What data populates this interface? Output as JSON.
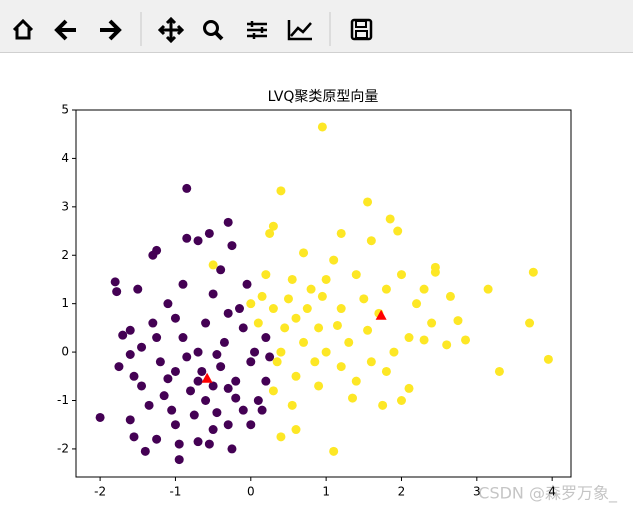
{
  "chart_data": {
    "type": "scatter",
    "title": "LVQ聚类原型向量",
    "xlim": [
      -2.32,
      4.25
    ],
    "ylim": [
      -2.58,
      5
    ],
    "xticks": [
      -2,
      -1,
      0,
      1,
      2,
      3,
      4
    ],
    "yticks": [
      -2,
      -1,
      0,
      1,
      2,
      3,
      4,
      5
    ],
    "watermark": "CSDN @森罗万象_",
    "series": [
      {
        "color": "#440154",
        "x": [
          -0.85,
          -2.0,
          -1.8,
          -1.78,
          -0.95,
          -0.3,
          -1.3,
          -1.25,
          -0.85,
          -0.7,
          -0.55,
          -0.25,
          -1.6,
          -1.7,
          -1.55,
          -1.6,
          -1.55,
          -1.25,
          -1.0,
          -0.7,
          -0.5,
          -0.3,
          -0.1,
          0.1,
          0.2,
          0.25,
          0.2,
          -0.1,
          -0.3,
          -0.5,
          -0.9,
          -1.1,
          -1.3,
          -1.45,
          -1.2,
          -1.0,
          -0.8,
          -0.6,
          -0.4,
          -0.2,
          0.0,
          -0.7,
          -0.9,
          -1.15,
          -1.35,
          -0.45,
          -0.65,
          -0.5,
          -0.75,
          -1.05,
          -0.35,
          -0.15,
          -0.05,
          -1.45,
          -1.6,
          -1.75,
          -0.2,
          0.05,
          -0.85,
          -0.6,
          -1.0,
          -1.5,
          -0.4,
          0.0,
          0.15,
          -0.55,
          -0.25,
          -1.4,
          -0.95,
          -0.3,
          -0.7,
          -0.45,
          -1.25,
          -1.1
        ],
        "values": [
          3.38,
          -1.35,
          1.45,
          1.25,
          -2.22,
          2.68,
          2.0,
          2.1,
          2.35,
          2.3,
          2.45,
          2.2,
          0.45,
          0.35,
          -0.5,
          -1.4,
          -1.75,
          -1.8,
          -1.5,
          -1.85,
          -1.6,
          -1.5,
          -1.2,
          -1.0,
          -0.6,
          -0.1,
          0.3,
          0.5,
          0.8,
          1.2,
          1.4,
          1.0,
          0.6,
          0.1,
          -0.2,
          -0.4,
          -0.8,
          -1.0,
          -0.3,
          -0.6,
          -0.2,
          0.0,
          0.3,
          -0.9,
          -1.1,
          -1.25,
          -0.4,
          -0.7,
          -1.3,
          -1.2,
          0.2,
          0.9,
          1.4,
          -0.7,
          -0.05,
          -0.3,
          -0.95,
          0.0,
          -0.1,
          0.6,
          0.7,
          1.3,
          1.7,
          -1.5,
          -1.2,
          -1.9,
          -2.0,
          -2.05,
          -1.9,
          -0.75,
          -0.6,
          -0.05,
          0.3,
          -0.55
        ]
      },
      {
        "color": "#fde725",
        "x": [
          0.95,
          0.4,
          1.55,
          1.85,
          0.3,
          0.25,
          1.2,
          1.6,
          0.7,
          2.45,
          2.45,
          3.75,
          3.15,
          2.65,
          2.75,
          3.7,
          3.3,
          3.95,
          2.85,
          2.1,
          2.0,
          1.75,
          1.8,
          1.2,
          1.1,
          0.6,
          0.4,
          0.55,
          0.3,
          -0.5,
          1.0,
          0.8,
          0.5,
          0.3,
          0.6,
          0.9,
          1.2,
          1.5,
          1.8,
          2.0,
          2.2,
          2.4,
          2.1,
          1.9,
          1.6,
          1.3,
          1.0,
          0.7,
          0.45,
          0.15,
          0.1,
          0.35,
          0.6,
          0.9,
          1.4,
          1.55,
          1.7,
          2.3,
          0.75,
          1.1,
          1.4,
          0.2,
          0.55,
          0.85,
          1.15,
          1.35,
          0.0,
          2.6,
          1.95,
          2.3,
          0.95,
          0.4
        ],
        "values": [
          4.65,
          3.33,
          3.1,
          2.75,
          2.6,
          2.45,
          2.45,
          2.3,
          2.05,
          1.75,
          1.65,
          1.65,
          1.3,
          1.15,
          0.65,
          0.6,
          -0.4,
          -0.15,
          0.25,
          -0.75,
          -1.0,
          -1.1,
          -0.4,
          -0.3,
          -2.05,
          -1.6,
          -1.75,
          -1.1,
          -0.8,
          1.8,
          1.5,
          1.3,
          1.1,
          0.9,
          0.7,
          0.5,
          0.9,
          1.1,
          1.3,
          1.6,
          1.0,
          0.6,
          0.3,
          0.0,
          -0.2,
          0.2,
          0.0,
          0.2,
          0.5,
          1.15,
          0.6,
          -0.2,
          -0.5,
          -0.7,
          -0.6,
          0.45,
          0.8,
          0.25,
          0.9,
          1.9,
          1.6,
          1.6,
          1.5,
          -0.2,
          0.55,
          -0.95,
          1.0,
          0.15,
          2.5,
          1.3,
          1.15,
          0.0
        ]
      },
      {
        "color": "#ff0000",
        "marker": "triangle",
        "x": [
          -0.58,
          1.73
        ],
        "values": [
          -0.55,
          0.75
        ]
      }
    ]
  }
}
